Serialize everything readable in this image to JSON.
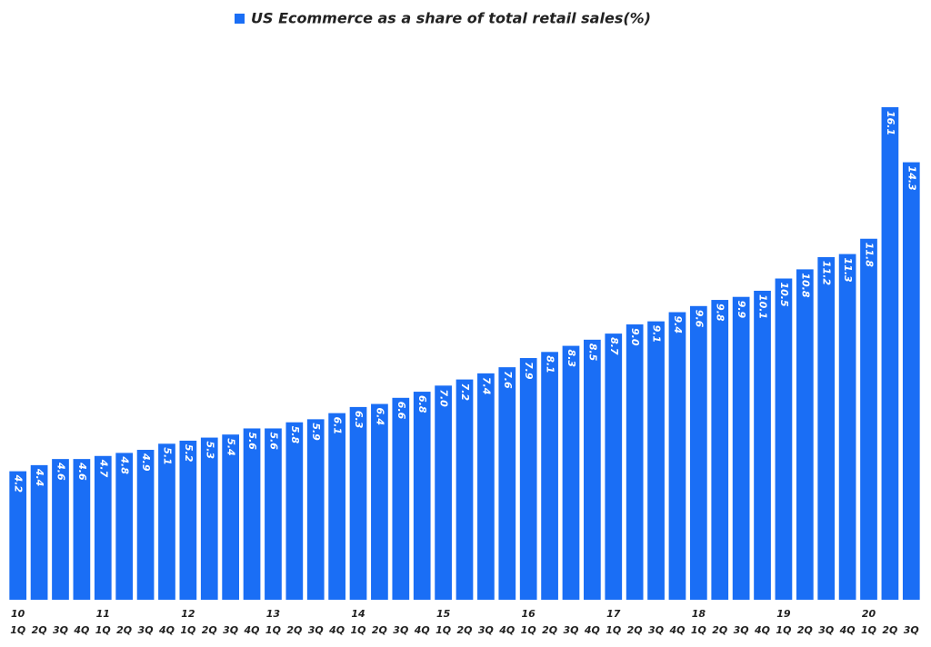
{
  "chart_data": {
    "type": "bar",
    "categories": [
      "1Q",
      "2Q",
      "3Q",
      "4Q",
      "1Q",
      "2Q",
      "3Q",
      "4Q",
      "1Q",
      "2Q",
      "3Q",
      "4Q",
      "1Q",
      "2Q",
      "3Q",
      "4Q",
      "1Q",
      "2Q",
      "3Q",
      "4Q",
      "1Q",
      "2Q",
      "3Q",
      "4Q",
      "1Q",
      "2Q",
      "3Q",
      "4Q",
      "1Q",
      "2Q",
      "3Q",
      "4Q",
      "1Q",
      "2Q",
      "3Q",
      "4Q",
      "1Q",
      "2Q",
      "3Q",
      "4Q",
      "1Q",
      "2Q",
      "3Q"
    ],
    "year_labels": [
      "10",
      null,
      null,
      null,
      "11",
      null,
      null,
      null,
      "12",
      null,
      null,
      null,
      "13",
      null,
      null,
      null,
      "14",
      null,
      null,
      null,
      "15",
      null,
      null,
      null,
      "16",
      null,
      null,
      null,
      "17",
      null,
      null,
      null,
      "18",
      null,
      null,
      null,
      "19",
      null,
      null,
      null,
      "20",
      null,
      null
    ],
    "series": [
      {
        "name": "US Ecommerce as a share of total retail sales(%)",
        "color": "#1a6ef5",
        "values": [
          4.2,
          4.4,
          4.6,
          4.6,
          4.7,
          4.8,
          4.9,
          5.1,
          5.2,
          5.3,
          5.4,
          5.6,
          5.6,
          5.8,
          5.9,
          6.1,
          6.3,
          6.4,
          6.6,
          6.8,
          7.0,
          7.2,
          7.4,
          7.6,
          7.9,
          8.1,
          8.3,
          8.5,
          8.7,
          9.0,
          9.1,
          9.4,
          9.6,
          9.8,
          9.9,
          10.1,
          10.5,
          10.8,
          11.2,
          11.3,
          11.8,
          16.1,
          14.3
        ],
        "value_labels": [
          "4.2",
          "4.4",
          "4.6",
          "4.6",
          "4.7",
          "4.8",
          "4.9",
          "5.1",
          "5.2",
          "5.3",
          "5.4",
          "5.6",
          "5.6",
          "5.8",
          "5.9",
          "6.1",
          "6.3",
          "6.4",
          "6.6",
          "6.8",
          "7.0",
          "7.2",
          "7.4",
          "7.6",
          "7.9",
          "8.1",
          "8.3",
          "8.5",
          "8.7",
          "9.0",
          "9.1",
          "9.4",
          "9.6",
          "9.8",
          "9.9",
          "10.1",
          "10.5",
          "10.8",
          "11.2",
          "11.3",
          "11.8",
          "16.1",
          "14.3"
        ]
      }
    ],
    "ylim": [
      0,
      18
    ]
  }
}
